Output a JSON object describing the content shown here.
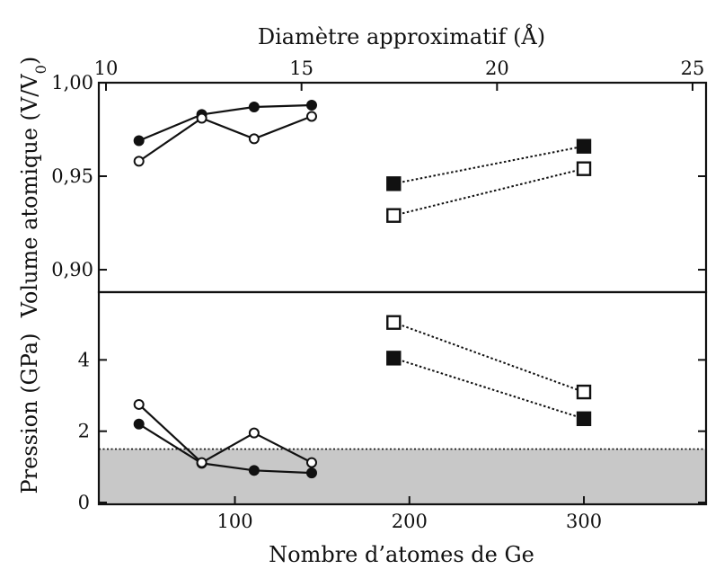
{
  "chart_data": [
    {
      "panel": "top",
      "type": "line",
      "top_axis": {
        "label": "Diamètre approximatif (Å)",
        "ticks": [
          10,
          15,
          20,
          25
        ],
        "tick_labels": [
          "10",
          "15",
          "20",
          "25"
        ]
      },
      "ylabel_parts": [
        "Volume atomique (V/V",
        "0",
        ")"
      ],
      "ylim": [
        0.888,
        1.0
      ],
      "yticks": [
        1.0,
        0.95,
        0.9
      ],
      "ytick_labels": [
        "1,00",
        "0,95",
        "0,90"
      ],
      "xlim": [
        22,
        370
      ],
      "series": [
        {
          "marker": "filled-circle",
          "line": "solid",
          "x": [
            45,
            81,
            111,
            144
          ],
          "y": [
            0.969,
            0.983,
            0.987,
            0.988
          ]
        },
        {
          "marker": "open-circle",
          "line": "solid",
          "x": [
            45,
            81,
            111,
            144
          ],
          "y": [
            0.958,
            0.981,
            0.97,
            0.982
          ]
        },
        {
          "marker": "filled-square",
          "line": "dotted",
          "x": [
            191,
            300
          ],
          "y": [
            0.946,
            0.966
          ]
        },
        {
          "marker": "open-square",
          "line": "dotted",
          "x": [
            191,
            300
          ],
          "y": [
            0.929,
            0.954
          ]
        }
      ]
    },
    {
      "panel": "bottom",
      "type": "line",
      "xlabel": "Nombre d’atomes de Ge",
      "ylabel": "Pression (GPa)",
      "xlim": [
        22,
        370
      ],
      "ylim": [
        -0.05,
        5.9
      ],
      "xticks": [
        100,
        200,
        300
      ],
      "xtick_labels": [
        "100",
        "200",
        "300"
      ],
      "yticks": [
        0,
        2,
        4
      ],
      "ytick_labels": [
        "0",
        "2",
        "4"
      ],
      "shaded_region": {
        "from": 0,
        "to": 1.5,
        "color": "#c8c8c8"
      },
      "threshold_line": {
        "y": 1.5,
        "style": "dotted"
      },
      "series": [
        {
          "marker": "filled-circle",
          "line": "solid",
          "x": [
            45,
            81,
            111,
            144
          ],
          "y": [
            2.2,
            1.1,
            0.9,
            0.83
          ]
        },
        {
          "marker": "open-circle",
          "line": "solid",
          "x": [
            45,
            81,
            111,
            144
          ],
          "y": [
            2.75,
            1.12,
            1.95,
            1.12
          ]
        },
        {
          "marker": "filled-square",
          "line": "dotted",
          "x": [
            191,
            300
          ],
          "y": [
            4.05,
            2.35
          ]
        },
        {
          "marker": "open-square",
          "line": "dotted",
          "x": [
            191,
            300
          ],
          "y": [
            5.05,
            3.1
          ]
        }
      ]
    }
  ]
}
